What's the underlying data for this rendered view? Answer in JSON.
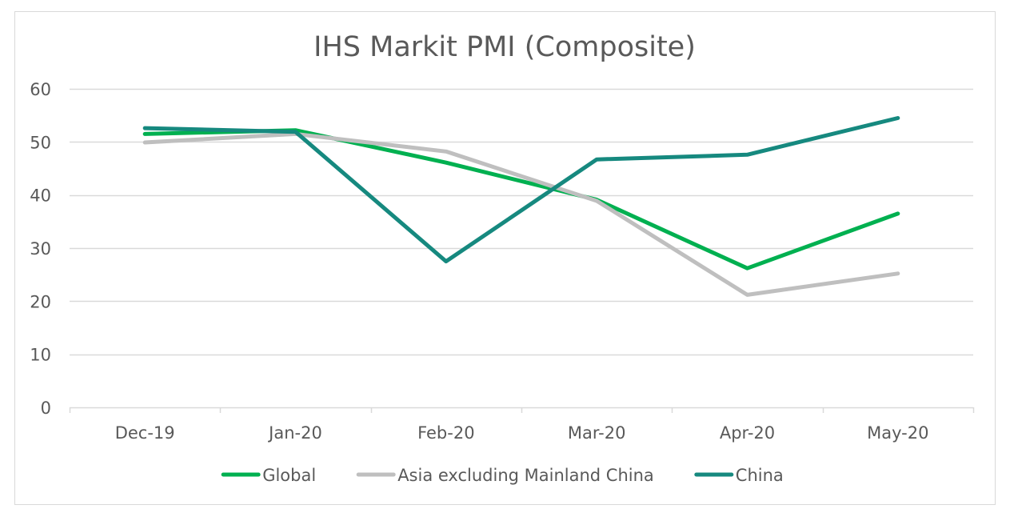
{
  "chart_data": {
    "type": "line",
    "title": "IHS Markit PMI (Composite)",
    "xlabel": "",
    "ylabel": "",
    "categories": [
      "Dec-19",
      "Jan-20",
      "Feb-20",
      "Mar-20",
      "Apr-20",
      "May-20"
    ],
    "ylim": [
      0,
      60
    ],
    "yticks": [
      0,
      10,
      20,
      30,
      40,
      50,
      60
    ],
    "grid": true,
    "legend_position": "bottom",
    "series": [
      {
        "name": "Global",
        "color": "#00b050",
        "values": [
          51.5,
          52.2,
          46.1,
          39.1,
          26.2,
          36.5
        ]
      },
      {
        "name": "Asia excluding Mainland China",
        "color": "#bfbfbf",
        "values": [
          49.9,
          51.5,
          48.2,
          38.9,
          21.2,
          25.2
        ]
      },
      {
        "name": "China",
        "color": "#16897f",
        "values": [
          52.6,
          51.9,
          27.5,
          46.7,
          47.6,
          54.5
        ]
      }
    ]
  }
}
